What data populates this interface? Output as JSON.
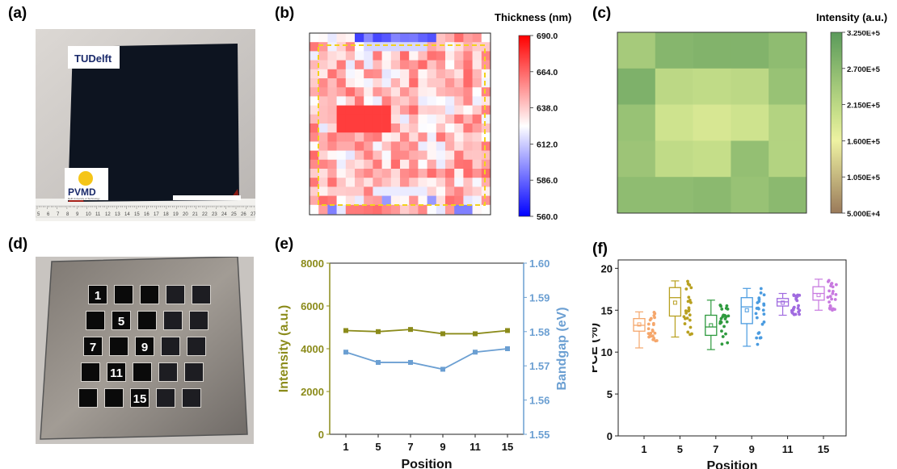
{
  "panels": {
    "a": {
      "label": "(a)",
      "logo_top": "TUDelft",
      "logo_bottom": "PVMD",
      "logo_bottom_sub": "Delft University of Technology",
      "ruler_numbers": [
        "5",
        "6",
        "7",
        "8",
        "9",
        "10",
        "11",
        "12",
        "13",
        "14",
        "15",
        "16",
        "17",
        "18",
        "19",
        "20",
        "21",
        "22",
        "23",
        "24",
        "25",
        "26",
        "27"
      ]
    },
    "b": {
      "label": "(b)"
    },
    "c": {
      "label": "(c)"
    },
    "d": {
      "label": "(d)",
      "position_numbers": [
        {
          "row": 0,
          "col": 0,
          "text": "1"
        },
        {
          "row": 1,
          "col": 1,
          "text": "5"
        },
        {
          "row": 2,
          "col": 0,
          "text": "7"
        },
        {
          "row": 2,
          "col": 2,
          "text": "9"
        },
        {
          "row": 3,
          "col": 1,
          "text": "11"
        },
        {
          "row": 4,
          "col": 2,
          "text": "15"
        }
      ]
    },
    "e": {
      "label": "(e)"
    },
    "f": {
      "label": "(f)"
    }
  },
  "colors": {
    "intensity_series": "#8b8b1a",
    "bandgap_series": "#6b9fd2",
    "gold_axis": "#8b8b1a",
    "blue_axis": "#6b9fd2",
    "dash_box": "#f2d21a"
  },
  "chart_data": [
    {
      "panel": "b",
      "type": "heatmap",
      "legend_title": "Thickness (nm)",
      "colorbar_ticks": [
        "690.0",
        "664.0",
        "638.0",
        "612.0",
        "586.0",
        "560.0"
      ],
      "colorbar_range": [
        560,
        690
      ],
      "colormap": [
        "#0000ff",
        "#ffffff",
        "#ff0000"
      ],
      "grid_size": [
        20,
        20
      ],
      "description_of_values": "thickness map with dashed yellow inner region"
    },
    {
      "panel": "c",
      "type": "heatmap",
      "legend_title": "Intensity (a.u.)",
      "colorbar_ticks": [
        "3.250E+5",
        "2.700E+5",
        "2.150E+5",
        "1.600E+5",
        "1.050E+5",
        "5.000E+4"
      ],
      "colorbar_range": [
        50000,
        325000
      ],
      "values": [
        [
          240000,
          275000,
          280000,
          280000,
          265000
        ],
        [
          285000,
          215000,
          210000,
          215000,
          255000
        ],
        [
          255000,
          195000,
          185000,
          195000,
          225000
        ],
        [
          250000,
          210000,
          205000,
          260000,
          225000
        ],
        [
          265000,
          265000,
          270000,
          255000,
          270000
        ]
      ]
    },
    {
      "panel": "e",
      "type": "line",
      "xlabel": "Position",
      "categories": [
        "1",
        "5",
        "7",
        "9",
        "11",
        "15"
      ],
      "y_left": {
        "label": "Intensity (a.u.)",
        "range": [
          0,
          8000
        ],
        "ticks": [
          "0",
          "2000",
          "4000",
          "6000",
          "8000"
        ]
      },
      "y_right": {
        "label": "Bandgap (eV)",
        "range": [
          1.55,
          1.6
        ],
        "ticks": [
          "1.55",
          "1.56",
          "1.57",
          "1.58",
          "1.59",
          "1.60"
        ]
      },
      "series": [
        {
          "axis": "left",
          "values": [
            4850,
            4800,
            4900,
            4700,
            4700,
            4850
          ]
        },
        {
          "axis": "right",
          "values": [
            1.574,
            1.571,
            1.571,
            1.569,
            1.574,
            1.575
          ]
        }
      ]
    },
    {
      "panel": "f",
      "type": "box",
      "xlabel": "Position",
      "ylabel": "PCE (%)",
      "ylim": [
        0,
        21
      ],
      "y_ticks": [
        "0",
        "5",
        "10",
        "15",
        "20"
      ],
      "categories": [
        "1",
        "5",
        "7",
        "9",
        "11",
        "15"
      ],
      "series_colors": [
        "#f5a76c",
        "#b8a020",
        "#2e9a3e",
        "#4a9be0",
        "#a06be0",
        "#c87ae0"
      ],
      "boxes": [
        {
          "min": 10.5,
          "q1": 12.5,
          "median": 13.2,
          "q3": 14.0,
          "max": 14.8,
          "mean": 13.3
        },
        {
          "min": 11.8,
          "q1": 14.3,
          "median": 16.5,
          "q3": 17.7,
          "max": 18.5,
          "mean": 15.9
        },
        {
          "min": 10.3,
          "q1": 12.0,
          "median": 13.0,
          "q3": 14.4,
          "max": 16.2,
          "mean": 13.2
        },
        {
          "min": 10.7,
          "q1": 13.4,
          "median": 15.4,
          "q3": 16.5,
          "max": 17.6,
          "mean": 15.0
        },
        {
          "min": 14.4,
          "q1": 15.5,
          "median": 16.0,
          "q3": 16.4,
          "max": 17.0,
          "mean": 15.9
        },
        {
          "min": 15.0,
          "q1": 16.2,
          "median": 17.0,
          "q3": 17.8,
          "max": 18.7,
          "mean": 16.8
        }
      ]
    }
  ]
}
